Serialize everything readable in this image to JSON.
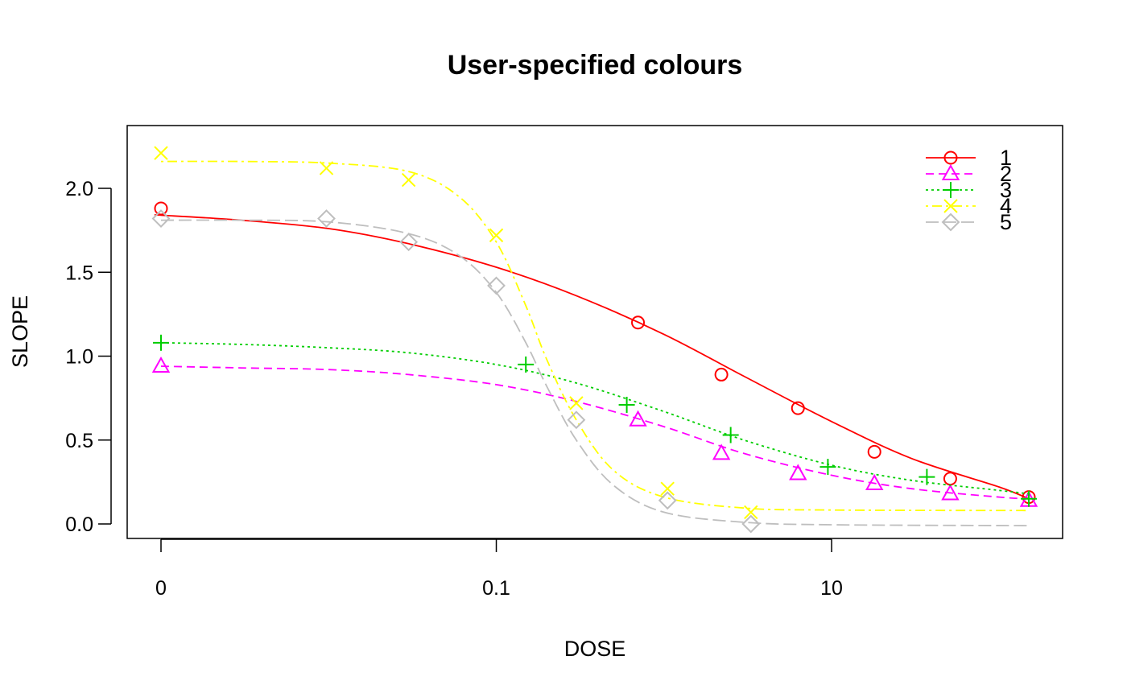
{
  "chart_data": {
    "type": "line",
    "title": "User-specified colours",
    "xlabel": "DOSE",
    "ylabel": "SLOPE",
    "x_scale": "log",
    "x_ticks": [
      {
        "label": "0",
        "value": 0
      },
      {
        "label": "0.1",
        "value": 0.1
      },
      {
        "label": "10",
        "value": 10
      }
    ],
    "y_ticks": [
      {
        "label": "0.0",
        "value": 0.0
      },
      {
        "label": "0.5",
        "value": 0.5
      },
      {
        "label": "1.0",
        "value": 1.0
      },
      {
        "label": "1.5",
        "value": 1.5
      },
      {
        "label": "2.0",
        "value": 2.0
      }
    ],
    "legend_position": "top-right",
    "series": [
      {
        "name": "1",
        "color": "#ff0000",
        "marker": "circle",
        "dash": "solid",
        "points": [
          {
            "x": 0,
            "y": 1.88
          },
          {
            "x": 0.7,
            "y": 1.2
          },
          {
            "x": 2.2,
            "y": 0.89
          },
          {
            "x": 6.3,
            "y": 0.69
          },
          {
            "x": 18,
            "y": 0.43
          },
          {
            "x": 51,
            "y": 0.27
          },
          {
            "x": 150,
            "y": 0.16
          }
        ],
        "curve": [
          {
            "x": 0,
            "y": 1.84
          },
          {
            "x": 0.001,
            "y": 1.84
          },
          {
            "x": 0.003,
            "y": 1.81
          },
          {
            "x": 0.01,
            "y": 1.76
          },
          {
            "x": 0.03,
            "y": 1.67
          },
          {
            "x": 0.1,
            "y": 1.53
          },
          {
            "x": 0.3,
            "y": 1.36
          },
          {
            "x": 1,
            "y": 1.13
          },
          {
            "x": 3,
            "y": 0.88
          },
          {
            "x": 10,
            "y": 0.61
          },
          {
            "x": 30,
            "y": 0.39
          },
          {
            "x": 100,
            "y": 0.22
          },
          {
            "x": 150,
            "y": 0.15
          }
        ]
      },
      {
        "name": "2",
        "color": "#ff00ff",
        "marker": "triangle",
        "dash": "dashed",
        "points": [
          {
            "x": 0,
            "y": 0.94
          },
          {
            "x": 0.7,
            "y": 0.62
          },
          {
            "x": 2.2,
            "y": 0.42
          },
          {
            "x": 6.3,
            "y": 0.3
          },
          {
            "x": 18,
            "y": 0.24
          },
          {
            "x": 51,
            "y": 0.18
          },
          {
            "x": 150,
            "y": 0.14
          }
        ],
        "curve": [
          {
            "x": 0,
            "y": 0.94
          },
          {
            "x": 0.003,
            "y": 0.93
          },
          {
            "x": 0.01,
            "y": 0.92
          },
          {
            "x": 0.03,
            "y": 0.89
          },
          {
            "x": 0.1,
            "y": 0.83
          },
          {
            "x": 0.3,
            "y": 0.73
          },
          {
            "x": 1,
            "y": 0.58
          },
          {
            "x": 3,
            "y": 0.42
          },
          {
            "x": 10,
            "y": 0.29
          },
          {
            "x": 30,
            "y": 0.21
          },
          {
            "x": 100,
            "y": 0.16
          },
          {
            "x": 150,
            "y": 0.15
          }
        ]
      },
      {
        "name": "3",
        "color": "#00cd00",
        "marker": "plus",
        "dash": "dotted",
        "points": [
          {
            "x": 0,
            "y": 1.08
          },
          {
            "x": 0.15,
            "y": 0.95
          },
          {
            "x": 0.6,
            "y": 0.71
          },
          {
            "x": 2.5,
            "y": 0.53
          },
          {
            "x": 9.5,
            "y": 0.34
          },
          {
            "x": 37,
            "y": 0.28
          },
          {
            "x": 150,
            "y": 0.15
          }
        ],
        "curve": [
          {
            "x": 0,
            "y": 1.08
          },
          {
            "x": 0.003,
            "y": 1.07
          },
          {
            "x": 0.01,
            "y": 1.05
          },
          {
            "x": 0.03,
            "y": 1.02
          },
          {
            "x": 0.1,
            "y": 0.95
          },
          {
            "x": 0.3,
            "y": 0.84
          },
          {
            "x": 1,
            "y": 0.67
          },
          {
            "x": 3,
            "y": 0.5
          },
          {
            "x": 10,
            "y": 0.35
          },
          {
            "x": 30,
            "y": 0.26
          },
          {
            "x": 100,
            "y": 0.2
          },
          {
            "x": 150,
            "y": 0.18
          }
        ]
      },
      {
        "name": "4",
        "color": "#ffff00",
        "marker": "cross",
        "dash": "dotdash",
        "points": [
          {
            "x": 0,
            "y": 2.21
          },
          {
            "x": 0.0097,
            "y": 2.12
          },
          {
            "x": 0.03,
            "y": 2.05
          },
          {
            "x": 0.1,
            "y": 1.72
          },
          {
            "x": 0.3,
            "y": 0.72
          },
          {
            "x": 1.05,
            "y": 0.21
          },
          {
            "x": 3.3,
            "y": 0.07
          }
        ],
        "curve": [
          {
            "x": 0,
            "y": 2.16
          },
          {
            "x": 0.003,
            "y": 2.16
          },
          {
            "x": 0.01,
            "y": 2.15
          },
          {
            "x": 0.03,
            "y": 2.1
          },
          {
            "x": 0.06,
            "y": 1.95
          },
          {
            "x": 0.1,
            "y": 1.68
          },
          {
            "x": 0.15,
            "y": 1.3
          },
          {
            "x": 0.2,
            "y": 0.98
          },
          {
            "x": 0.3,
            "y": 0.62
          },
          {
            "x": 0.5,
            "y": 0.32
          },
          {
            "x": 1,
            "y": 0.16
          },
          {
            "x": 3,
            "y": 0.095
          },
          {
            "x": 10,
            "y": 0.083
          },
          {
            "x": 150,
            "y": 0.08
          }
        ]
      },
      {
        "name": "5",
        "color": "#bebebe",
        "marker": "diamond",
        "dash": "longdash",
        "points": [
          {
            "x": 0,
            "y": 1.82
          },
          {
            "x": 0.0097,
            "y": 1.82
          },
          {
            "x": 0.03,
            "y": 1.68
          },
          {
            "x": 0.1,
            "y": 1.42
          },
          {
            "x": 0.3,
            "y": 0.62
          },
          {
            "x": 1.05,
            "y": 0.14
          },
          {
            "x": 3.3,
            "y": 0.0
          }
        ],
        "curve": [
          {
            "x": 0,
            "y": 1.81
          },
          {
            "x": 0.003,
            "y": 1.81
          },
          {
            "x": 0.01,
            "y": 1.8
          },
          {
            "x": 0.03,
            "y": 1.73
          },
          {
            "x": 0.06,
            "y": 1.6
          },
          {
            "x": 0.1,
            "y": 1.38
          },
          {
            "x": 0.15,
            "y": 1.08
          },
          {
            "x": 0.2,
            "y": 0.82
          },
          {
            "x": 0.3,
            "y": 0.5
          },
          {
            "x": 0.5,
            "y": 0.23
          },
          {
            "x": 1,
            "y": 0.07
          },
          {
            "x": 3,
            "y": 0.01
          },
          {
            "x": 10,
            "y": -0.005
          },
          {
            "x": 150,
            "y": -0.01
          }
        ]
      }
    ]
  }
}
